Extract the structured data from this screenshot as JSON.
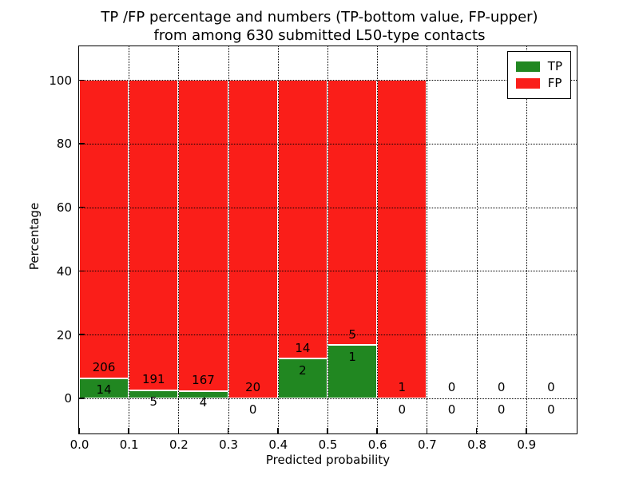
{
  "title": {
    "line1": "TP /FP percentage and numbers (TP-bottom value, FP-upper)",
    "line2": "from among 630 submitted L50-type contacts"
  },
  "y_axis": {
    "label": "Percentage",
    "tick_values": [
      0,
      20,
      40,
      60,
      80,
      100
    ],
    "tick_labels": [
      "0",
      "20",
      "40",
      "60",
      "80",
      "100"
    ]
  },
  "x_axis": {
    "label": "Predicted probability",
    "tick_values": [
      0.0,
      0.1,
      0.2,
      0.3,
      0.4,
      0.5,
      0.6,
      0.7,
      0.8,
      0.9
    ],
    "tick_labels": [
      "0.0",
      "0.1",
      "0.2",
      "0.3",
      "0.4",
      "0.5",
      "0.6",
      "0.7",
      "0.8",
      "0.9"
    ]
  },
  "legend": {
    "items": [
      {
        "label": "TP",
        "color": "#218721"
      },
      {
        "label": "FP",
        "color": "#fa1e19"
      }
    ]
  },
  "colors": {
    "tp": "#218721",
    "fp": "#fa1e19",
    "grid": "#000000",
    "bar_edge": "#ffffff"
  },
  "chart_data": {
    "type": "bar",
    "stacked": true,
    "title": "TP /FP percentage and numbers (TP-bottom value, FP-upper) from among 630 submitted L50-type contacts",
    "xlabel": "Predicted probability",
    "ylabel": "Percentage",
    "total_contacts": 630,
    "bin_edges": [
      0.0,
      0.1,
      0.2,
      0.3,
      0.4,
      0.5,
      0.6,
      0.7,
      0.8,
      0.9,
      1.0
    ],
    "series": [
      {
        "name": "TP",
        "color": "#218721",
        "counts": [
          14,
          5,
          4,
          0,
          2,
          1,
          0,
          0,
          0,
          0
        ],
        "percent": [
          6.36,
          2.55,
          2.34,
          0,
          12.5,
          16.67,
          0,
          0,
          0,
          0
        ]
      },
      {
        "name": "FP",
        "color": "#fa1e19",
        "counts": [
          206,
          191,
          167,
          20,
          14,
          5,
          1,
          0,
          0,
          0
        ],
        "percent": [
          93.64,
          97.45,
          97.66,
          100,
          87.5,
          83.33,
          100,
          0,
          0,
          0
        ]
      }
    ],
    "annotation_rule": "FP count printed above top of TP segment, TP count printed below it, at each bin center",
    "ylim": [
      -10.8,
      110.6
    ],
    "xlim": [
      0.0,
      1.0
    ],
    "grid": true,
    "grid_style": "dotted",
    "legend_position": "upper right"
  }
}
